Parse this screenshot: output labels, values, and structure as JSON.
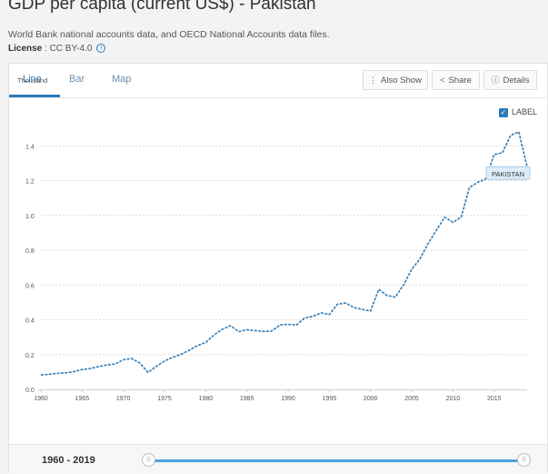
{
  "header": {
    "title": "GDP per capita (current US$) - Pakistan",
    "subtitle": "World Bank national accounts data, and OECD National Accounts data files.",
    "license_label": "License",
    "license_value": " : CC BY-4.0",
    "info_icon": "info-icon"
  },
  "tabs": [
    {
      "label": "Line",
      "active": true
    },
    {
      "label": "Bar",
      "active": false
    },
    {
      "label": "Map",
      "active": false
    }
  ],
  "toolbar": {
    "also_show": "Also Show",
    "share": "Share",
    "details": "Details"
  },
  "legend": {
    "checkbox_label": "LABEL",
    "checked": true
  },
  "range": {
    "label": "1960 - 2019",
    "start": 1960,
    "end": 2019,
    "handle_glyph": "|||"
  },
  "colors": {
    "accent": "#2a7ab9",
    "line": "#2f7ab5",
    "slider": "#4aa3df",
    "tooltip_bg": "#dcecf8"
  },
  "chart_data": {
    "type": "line",
    "units_label": "Thousand",
    "xlim": [
      1960,
      2019
    ],
    "ylim": [
      0,
      1.6
    ],
    "x_ticks": [
      1960,
      1965,
      1970,
      1975,
      1980,
      1985,
      1990,
      1995,
      2000,
      2005,
      2010,
      2015
    ],
    "y_ticks": [
      0.0,
      0.2,
      0.4,
      0.6,
      0.8,
      1.0,
      1.2,
      1.4
    ],
    "y_tick_labels": [
      "0.0",
      "0.2",
      "0.4",
      "0.6",
      "0.8",
      "1.0",
      "1.2",
      "1.4"
    ],
    "grid": true,
    "series": [
      {
        "name": "PAKISTAN",
        "x": [
          1960,
          1961,
          1962,
          1963,
          1964,
          1965,
          1966,
          1967,
          1968,
          1969,
          1970,
          1971,
          1972,
          1973,
          1974,
          1975,
          1976,
          1977,
          1978,
          1979,
          1980,
          1981,
          1982,
          1983,
          1984,
          1985,
          1986,
          1987,
          1988,
          1989,
          1990,
          1991,
          1992,
          1993,
          1994,
          1995,
          1996,
          1997,
          1998,
          1999,
          2000,
          2001,
          2002,
          2003,
          2004,
          2005,
          2006,
          2007,
          2008,
          2009,
          2010,
          2011,
          2012,
          2013,
          2014,
          2015,
          2016,
          2017,
          2018,
          2019
        ],
        "values": [
          0.083,
          0.087,
          0.092,
          0.095,
          0.102,
          0.114,
          0.12,
          0.132,
          0.14,
          0.146,
          0.17,
          0.177,
          0.152,
          0.098,
          0.132,
          0.163,
          0.184,
          0.202,
          0.225,
          0.252,
          0.27,
          0.312,
          0.345,
          0.366,
          0.332,
          0.343,
          0.338,
          0.333,
          0.335,
          0.37,
          0.374,
          0.37,
          0.41,
          0.42,
          0.44,
          0.43,
          0.49,
          0.496,
          0.47,
          0.46,
          0.45,
          0.575,
          0.54,
          0.53,
          0.6,
          0.69,
          0.75,
          0.84,
          0.915,
          0.99,
          0.96,
          0.99,
          1.16,
          1.19,
          1.21,
          1.35,
          1.36,
          1.46,
          1.48,
          1.28
        ]
      }
    ]
  }
}
